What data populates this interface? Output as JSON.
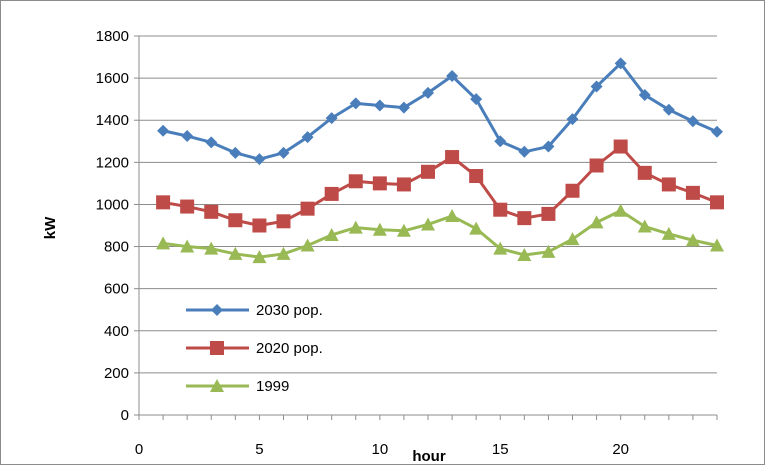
{
  "chart_data": {
    "type": "line",
    "title": "",
    "xlabel": "hour",
    "ylabel": "kW",
    "xlim": [
      0,
      24
    ],
    "ylim": [
      0,
      1800
    ],
    "xticks": [
      0,
      5,
      10,
      15,
      20
    ],
    "yticks": [
      0,
      200,
      400,
      600,
      800,
      1000,
      1200,
      1400,
      1600,
      1800
    ],
    "grid": "horizontal",
    "legend_position": "left",
    "x": [
      1,
      2,
      3,
      4,
      5,
      6,
      7,
      8,
      9,
      10,
      11,
      12,
      13,
      14,
      15,
      16,
      17,
      18,
      19,
      20,
      21,
      22,
      23,
      24
    ],
    "series": [
      {
        "name": "2030 pop.",
        "color": "#4a7ebb",
        "marker": "diamond",
        "values": [
          1350,
          1325,
          1295,
          1245,
          1215,
          1245,
          1320,
          1410,
          1480,
          1470,
          1460,
          1530,
          1610,
          1500,
          1300,
          1250,
          1275,
          1405,
          1560,
          1670,
          1520,
          1450,
          1395,
          1345
        ]
      },
      {
        "name": "2020 pop.",
        "color": "#be4b48",
        "marker": "square",
        "values": [
          1010,
          990,
          965,
          925,
          900,
          920,
          980,
          1050,
          1110,
          1100,
          1095,
          1155,
          1225,
          1135,
          975,
          935,
          955,
          1065,
          1185,
          1275,
          1150,
          1095,
          1055,
          1010
        ]
      },
      {
        "name": "1999",
        "color": "#98b954",
        "marker": "triangle",
        "values": [
          815,
          800,
          790,
          765,
          750,
          765,
          805,
          855,
          890,
          880,
          875,
          905,
          945,
          885,
          790,
          760,
          775,
          835,
          915,
          970,
          895,
          860,
          830,
          805
        ]
      }
    ]
  }
}
